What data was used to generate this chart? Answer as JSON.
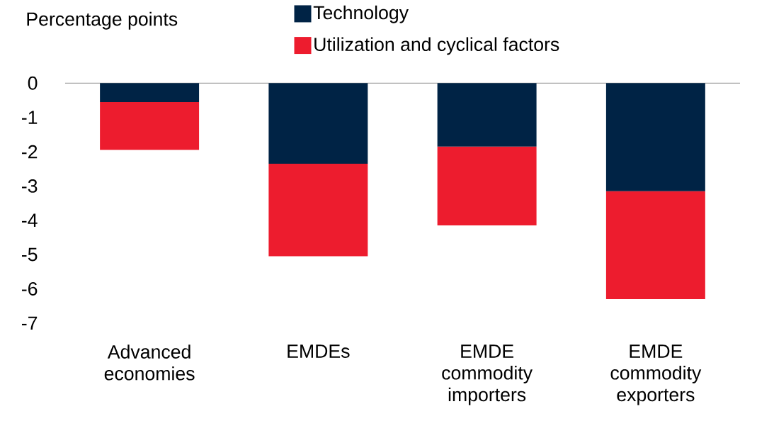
{
  "chart_data": {
    "type": "bar",
    "stacked": true,
    "ylabel": "Percentage points",
    "categories": [
      "Advanced economies",
      "EMDEs",
      "EMDE commodity importers",
      "EMDE commodity exporters"
    ],
    "series": [
      {
        "name": "Technology",
        "color": "#002345",
        "values": [
          -0.55,
          -2.35,
          -1.85,
          -3.15
        ]
      },
      {
        "name": "Utilization and cyclical factors",
        "color": "#ed1c2e",
        "values": [
          -1.4,
          -2.7,
          -2.3,
          -3.15
        ]
      }
    ],
    "ylim": [
      -7,
      0
    ],
    "yticks": [
      0,
      -1,
      -2,
      -3,
      -4,
      -5,
      -6,
      -7
    ],
    "legend": "top"
  }
}
